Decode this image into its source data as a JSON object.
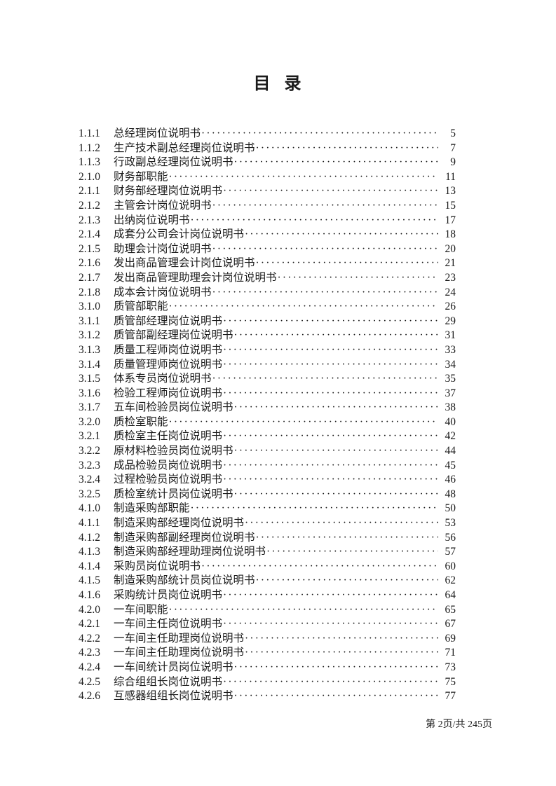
{
  "page": {
    "title": "目 录",
    "footer": "第 2页/共 245页"
  },
  "toc": {
    "leader_char": "·",
    "entries": [
      {
        "num": "1.1.1",
        "title": "总经理岗位说明书",
        "page": "5"
      },
      {
        "num": "1.1.2",
        "title": "生产技术副总经理岗位说明书",
        "page": "7"
      },
      {
        "num": "1.1.3",
        "title": "行政副总经理岗位说明书",
        "page": "9"
      },
      {
        "num": "2.1.0",
        "title": "财务部职能",
        "page": "11"
      },
      {
        "num": "2.1.1",
        "title": "财务部经理岗位说明书",
        "page": "13"
      },
      {
        "num": "2.1.2",
        "title": "主管会计岗位说明书",
        "page": "15"
      },
      {
        "num": "2.1.3",
        "title": "出纳岗位说明书",
        "page": "17"
      },
      {
        "num": "2.1.4",
        "title": "成套分公司会计岗位说明书",
        "page": "18"
      },
      {
        "num": "2.1.5",
        "title": "助理会计岗位说明书",
        "page": "20"
      },
      {
        "num": "2.1.6",
        "title": "发出商品管理会计岗位说明书",
        "page": "21"
      },
      {
        "num": "2.1.7",
        "title": "发出商品管理助理会计岗位说明书",
        "page": "23"
      },
      {
        "num": "2.1.8",
        "title": "成本会计岗位说明书",
        "page": "24"
      },
      {
        "num": "3.1.0",
        "title": "质管部职能",
        "page": "26"
      },
      {
        "num": "3.1.1",
        "title": "质管部经理岗位说明书",
        "page": "29"
      },
      {
        "num": "3.1.2",
        "title": "质管部副经理岗位说明书",
        "page": "31"
      },
      {
        "num": "3.1.3",
        "title": "质量工程师岗位说明书",
        "page": "33"
      },
      {
        "num": "3.1.4",
        "title": "质量管理师岗位说明书",
        "page": "34"
      },
      {
        "num": "3.1.5",
        "title": "体系专员岗位说明书",
        "page": "35"
      },
      {
        "num": "3.1.6",
        "title": "检验工程师岗位说明书",
        "page": "37"
      },
      {
        "num": "3.1.7",
        "title": "五车间检验员岗位说明书",
        "page": "38"
      },
      {
        "num": "3.2.0",
        "title": "质检室职能",
        "page": "40"
      },
      {
        "num": "3.2.1",
        "title": "质检室主任岗位说明书",
        "page": "42"
      },
      {
        "num": "3.2.2",
        "title": "原材料检验员岗位说明书",
        "page": "44"
      },
      {
        "num": "3.2.3",
        "title": "成品检验员岗位说明书",
        "page": "45"
      },
      {
        "num": "3.2.4",
        "title": "过程检验员岗位说明书",
        "page": "46"
      },
      {
        "num": "3.2.5",
        "title": "质检室统计员岗位说明书",
        "page": "48"
      },
      {
        "num": "4.1.0",
        "title": "制造采购部职能",
        "page": "50"
      },
      {
        "num": "4.1.1",
        "title": "制造采购部经理岗位说明书",
        "page": "53"
      },
      {
        "num": "4.1.2",
        "title": "制造采购部副经理岗位说明书",
        "page": "56"
      },
      {
        "num": "4.1.3",
        "title": "制造采购部经理助理岗位说明书",
        "page": "57"
      },
      {
        "num": "4.1.4",
        "title": "采购员岗位说明书",
        "page": "60"
      },
      {
        "num": "4.1.5",
        "title": "制造采购部统计员岗位说明书",
        "page": "62"
      },
      {
        "num": "4.1.6",
        "title": "采购统计员岗位说明书",
        "page": "64"
      },
      {
        "num": "4.2.0",
        "title": "一车间职能",
        "page": "65"
      },
      {
        "num": "4.2.1",
        "title": "一车间主任岗位说明书",
        "page": "67"
      },
      {
        "num": "4.2.2",
        "title": "一车间主任助理岗位说明书",
        "page": "69"
      },
      {
        "num": "4.2.3",
        "title": "一车间主任助理岗位说明书",
        "page": "71"
      },
      {
        "num": "4.2.4",
        "title": "一车间统计员岗位说明书",
        "page": "73"
      },
      {
        "num": "4.2.5",
        "title": "综合组组长岗位说明书",
        "page": "75"
      },
      {
        "num": "4.2.6",
        "title": "互感器组组长岗位说明书",
        "page": "77"
      }
    ]
  }
}
